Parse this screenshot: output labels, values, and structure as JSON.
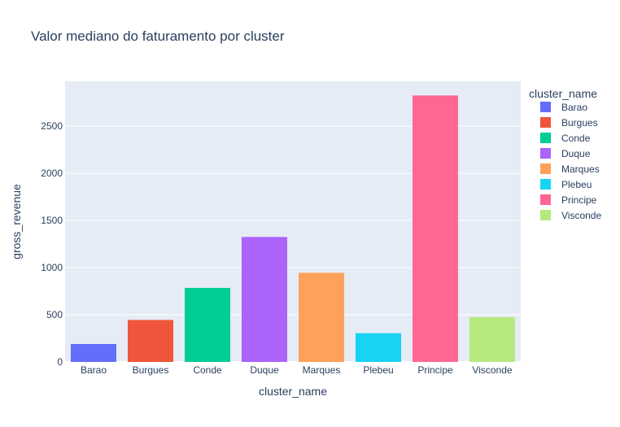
{
  "chart_data": {
    "type": "bar",
    "title": "Valor mediano do faturamento por cluster",
    "xlabel": "cluster_name",
    "ylabel": "gross_revenue",
    "categories": [
      "Barao",
      "Burgues",
      "Conde",
      "Duque",
      "Marques",
      "Plebeu",
      "Principe",
      "Visconde"
    ],
    "values": [
      190,
      445,
      785,
      1325,
      945,
      305,
      2825,
      475
    ],
    "colors": [
      "#636efa",
      "#EF553B",
      "#00cc96",
      "#ab63fa",
      "#FFA15A",
      "#19d3f3",
      "#FF6692",
      "#B6E880"
    ],
    "ylim": [
      0,
      2975
    ],
    "yticks": [
      0,
      500,
      1000,
      1500,
      2000,
      2500
    ],
    "grid": true,
    "legend": {
      "title": "cluster_name",
      "position": "right",
      "entries": [
        "Barao",
        "Burgues",
        "Conde",
        "Duque",
        "Marques",
        "Plebeu",
        "Principe",
        "Visconde"
      ]
    },
    "plot_background": "#e5ecf6",
    "grid_color": "#ffffff"
  }
}
